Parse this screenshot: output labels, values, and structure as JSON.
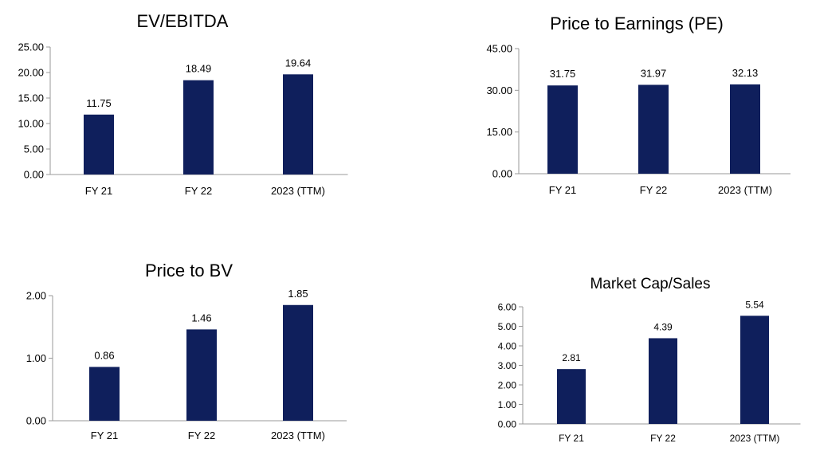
{
  "colors": {
    "bar": "#0f1f5c",
    "axis": "#999999",
    "text": "#000000"
  },
  "chart_data": [
    {
      "type": "bar",
      "title": "EV/EBITDA",
      "categories": [
        "FY 21",
        "FY 22",
        "2023 (TTM)"
      ],
      "values": [
        11.75,
        18.49,
        19.64
      ],
      "value_labels": [
        "11.75",
        "18.49",
        "19.64"
      ],
      "yticks": [
        0,
        5,
        10,
        15,
        20,
        25
      ],
      "ytick_labels": [
        "0.00",
        "5.00",
        "10.00",
        "15.00",
        "20.00",
        "25.00"
      ],
      "ylim": [
        0,
        25
      ],
      "xlabel": "",
      "ylabel": "",
      "grid": false,
      "legend": "none"
    },
    {
      "type": "bar",
      "title": "Price to Earnings (PE)",
      "categories": [
        "FY 21",
        "FY 22",
        "2023 (TTM)"
      ],
      "values": [
        31.75,
        31.97,
        32.13
      ],
      "value_labels": [
        "31.75",
        "31.97",
        "32.13"
      ],
      "yticks": [
        0,
        15,
        30,
        45
      ],
      "ytick_labels": [
        "0.00",
        "15.00",
        "30.00",
        "45.00"
      ],
      "ylim": [
        0,
        45
      ],
      "xlabel": "",
      "ylabel": "",
      "grid": false,
      "legend": "none"
    },
    {
      "type": "bar",
      "title": "Price to BV",
      "categories": [
        "FY 21",
        "FY 22",
        "2023 (TTM)"
      ],
      "values": [
        0.86,
        1.46,
        1.85
      ],
      "value_labels": [
        "0.86",
        "1.46",
        "1.85"
      ],
      "yticks": [
        0,
        1,
        2
      ],
      "ytick_labels": [
        "0.00",
        "1.00",
        "2.00"
      ],
      "ylim": [
        0,
        2
      ],
      "xlabel": "",
      "ylabel": "",
      "grid": false,
      "legend": "none"
    },
    {
      "type": "bar",
      "title": "Market Cap/Sales",
      "categories": [
        "FY 21",
        "FY 22",
        "2023 (TTM)"
      ],
      "values": [
        2.81,
        4.39,
        5.54
      ],
      "value_labels": [
        "2.81",
        "4.39",
        "5.54"
      ],
      "yticks": [
        0,
        1,
        2,
        3,
        4,
        5,
        6
      ],
      "ytick_labels": [
        "0.00",
        "1.00",
        "2.00",
        "3.00",
        "4.00",
        "5.00",
        "6.00"
      ],
      "ylim": [
        0,
        6
      ],
      "xlabel": "",
      "ylabel": "",
      "grid": false,
      "legend": "none"
    }
  ]
}
